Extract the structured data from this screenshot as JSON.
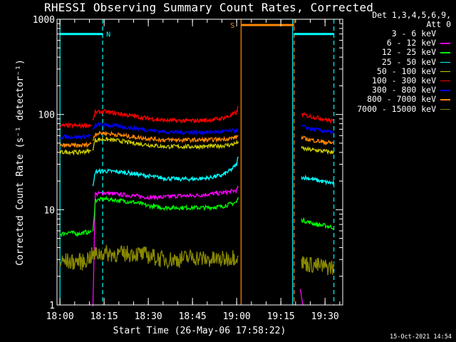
{
  "chart_data": {
    "type": "line",
    "title": "RHESSI Observing Summary Count Rates, Corrected",
    "xlabel": "Start Time (26-May-06 17:58:22)",
    "ylabel": "Corrected Count Rate (s⁻¹ detector⁻¹)",
    "yscale": "log",
    "ylim": [
      1,
      1000
    ],
    "xlim_minutes": [
      -1,
      96
    ],
    "x_ticks": [
      {
        "minutes": 0,
        "label": "18:00"
      },
      {
        "minutes": 15,
        "label": "18:15"
      },
      {
        "minutes": 30,
        "label": "18:30"
      },
      {
        "minutes": 45,
        "label": "18:45"
      },
      {
        "minutes": 60,
        "label": "19:00"
      },
      {
        "minutes": 75,
        "label": "19:15"
      },
      {
        "minutes": 90,
        "label": "19:30"
      }
    ],
    "y_ticks": [
      {
        "value": 1,
        "label": "1"
      },
      {
        "value": 10,
        "label": "10"
      },
      {
        "value": 100,
        "label": "100"
      },
      {
        "value": 1000,
        "label": "1000"
      }
    ],
    "legend_header": [
      "Det 1,3,4,5,6,9,",
      "Att 0"
    ],
    "legend_placement": "right",
    "series": [
      {
        "name": "3 - 6 keV",
        "color": "#000000",
        "segments": [
          {
            "x": [
              8.5,
              12,
              15,
              20,
              25,
              30,
              35,
              40,
              42,
              44,
              45,
              46,
              48,
              50,
              55,
              60.5
            ],
            "y": [
              3.0,
              4.0,
              3.5,
              3.0,
              3.2,
              3.0,
              3.5,
              3.5,
              4.8,
              5.5,
              4.5,
              4.2,
              3.8,
              3.5,
              3.2,
              3.5
            ]
          },
          {
            "x": [
              82,
              85,
              88,
              91,
              93
            ],
            "y": [
              3.0,
              2.8,
              2.7,
              2.6,
              2.5
            ]
          }
        ]
      },
      {
        "name": "6 - 12 keV",
        "color": "#ff00ff",
        "segments": [
          {
            "x": [
              11.2,
              12,
              15,
              20,
              25,
              30,
              35,
              40,
              45,
              50,
              55,
              58,
              60,
              60.5
            ],
            "y": [
              1.0,
              14.5,
              15.0,
              14.5,
              14.0,
              13.5,
              13.5,
              14.0,
              14.0,
              14.5,
              15.0,
              15.5,
              16.0,
              17.0
            ]
          },
          {
            "x": [
              81.5,
              82,
              82.5
            ],
            "y": [
              1.5,
              1.2,
              1.0
            ]
          }
        ]
      },
      {
        "name": "12 - 25 keV",
        "color": "#00ff00",
        "segments": [
          {
            "x": [
              0,
              3,
              6,
              9,
              10.5
            ],
            "y": [
              5.5,
              5.8,
              5.6,
              5.8,
              5.8
            ]
          },
          {
            "x": [
              11.2,
              12,
              15,
              20,
              25,
              30,
              35,
              40,
              45,
              50,
              55,
              58,
              60,
              60.5
            ],
            "y": [
              5.8,
              12.5,
              13.0,
              12.5,
              12.0,
              11.0,
              10.5,
              10.5,
              10.5,
              10.5,
              10.8,
              11.5,
              12.0,
              13.5
            ]
          },
          {
            "x": [
              82,
              84,
              87,
              90,
              93
            ],
            "y": [
              7.8,
              7.5,
              7.0,
              6.8,
              6.5
            ]
          }
        ]
      },
      {
        "name": "25 - 50 keV",
        "color": "#00ffff",
        "segments": [
          {
            "x": [
              11.2,
              12,
              15,
              20,
              25,
              30,
              35,
              40,
              45,
              50,
              55,
              58,
              60,
              60.5
            ],
            "y": [
              17.0,
              25.0,
              25.5,
              25.0,
              24.0,
              22.5,
              21.5,
              21.0,
              21.0,
              21.5,
              23.0,
              26.0,
              30.0,
              36.0
            ]
          },
          {
            "x": [
              82,
              84,
              87,
              90,
              93
            ],
            "y": [
              22.0,
              21.5,
              20.5,
              19.5,
              19.0
            ]
          }
        ]
      },
      {
        "name": "50 - 100 keV",
        "color": "#cccc00",
        "segments": [
          {
            "x": [
              0,
              3,
              6,
              9,
              10.5
            ],
            "y": [
              40.0,
              40.5,
              40.0,
              41.0,
              41.0
            ]
          },
          {
            "x": [
              11.2,
              12,
              15,
              20,
              25,
              30,
              35,
              40,
              45,
              50,
              55,
              58,
              60,
              60.5
            ],
            "y": [
              44.0,
              54.0,
              55.0,
              53.0,
              50.0,
              48.0,
              46.0,
              46.0,
              46.0,
              46.0,
              47.0,
              48.0,
              50.0,
              52.0
            ]
          },
          {
            "x": [
              82,
              84,
              87,
              90,
              93
            ],
            "y": [
              44.0,
              43.0,
              42.0,
              41.0,
              40.0
            ]
          }
        ]
      },
      {
        "name": "100 - 300 keV",
        "color": "#ff0000",
        "segments": [
          {
            "x": [
              0,
              3,
              6,
              9,
              10.5
            ],
            "y": [
              76.0,
              76.5,
              76.0,
              77.0,
              78.0
            ]
          },
          {
            "x": [
              11.2,
              12,
              15,
              20,
              25,
              30,
              35,
              40,
              45,
              50,
              55,
              58,
              60,
              60.5
            ],
            "y": [
              85.0,
              105.0,
              107.0,
              102.0,
              96.0,
              91.0,
              87.0,
              86.0,
              86.0,
              87.0,
              91.0,
              97.0,
              105.0,
              122.0
            ]
          },
          {
            "x": [
              82,
              84,
              87,
              90,
              93
            ],
            "y": [
              100.0,
              97.0,
              93.0,
              89.0,
              84.0
            ]
          }
        ]
      },
      {
        "name": "300 - 800 keV",
        "color": "#0000ff",
        "segments": [
          {
            "x": [
              0,
              3,
              6,
              9,
              10.5
            ],
            "y": [
              58.0,
              58.5,
              58.0,
              59.0,
              60.0
            ]
          },
          {
            "x": [
              11.2,
              12,
              15,
              20,
              25,
              30,
              35,
              40,
              45,
              50,
              55,
              58,
              60,
              60.5
            ],
            "y": [
              66.0,
              77.0,
              78.0,
              75.0,
              72.0,
              69.0,
              66.0,
              65.0,
              65.0,
              65.0,
              66.0,
              67.0,
              68.0,
              70.0
            ]
          },
          {
            "x": [
              82,
              84,
              87,
              90,
              93
            ],
            "y": [
              75.0,
              72.0,
              69.0,
              67.0,
              64.0
            ]
          }
        ]
      },
      {
        "name": "800 - 7000 keV",
        "color": "#ff8800",
        "segments": [
          {
            "x": [
              0,
              3,
              6,
              9,
              10.5
            ],
            "y": [
              47.0,
              47.5,
              47.0,
              48.0,
              49.0
            ]
          },
          {
            "x": [
              11.2,
              12,
              15,
              20,
              25,
              30,
              35,
              40,
              45,
              50,
              55,
              58,
              60,
              60.5
            ],
            "y": [
              54.0,
              63.0,
              64.0,
              61.0,
              58.0,
              56.0,
              54.0,
              54.0,
              54.0,
              54.0,
              55.0,
              56.0,
              58.0,
              60.0
            ]
          },
          {
            "x": [
              82,
              84,
              87,
              90,
              93
            ],
            "y": [
              57.0,
              55.0,
              53.0,
              51.0,
              50.0
            ]
          }
        ]
      },
      {
        "name": "7000 - 15000 keV",
        "color": "#888800",
        "segments": [
          {
            "x": [
              0,
              2,
              4,
              6,
              8,
              9,
              10,
              12,
              15,
              20,
              25,
              30,
              35,
              40,
              45,
              50,
              55,
              60.5
            ],
            "y": [
              2.8,
              2.9,
              2.8,
              2.9,
              2.8,
              3.0,
              3.2,
              3.4,
              3.5,
              3.4,
              3.5,
              3.3,
              3.0,
              3.0,
              3.2,
              3.0,
              3.0,
              3.3
            ]
          },
          {
            "x": [
              82,
              84,
              87,
              90,
              93
            ],
            "y": [
              2.8,
              2.7,
              2.6,
              2.5,
              2.5
            ]
          }
        ]
      }
    ],
    "status_bars": [
      {
        "label": "N",
        "color": "#00ffff",
        "x_start": 0,
        "x_end": 14.5,
        "level": 700
      },
      {
        "label": "S",
        "color": "#ff8800",
        "x_start": 61.5,
        "x_end": 79.5,
        "level": 870
      },
      {
        "label": "",
        "color": "#00ffff",
        "x_start": 79.5,
        "x_end": 93,
        "level": 700
      }
    ],
    "vertical_markers": [
      {
        "x": 0,
        "color": "#00ffff",
        "style": "solid"
      },
      {
        "x": 14.5,
        "color": "#00ffff",
        "style": "dashed"
      },
      {
        "x": 61.5,
        "color": "#ff8800",
        "style": "solid"
      },
      {
        "x": 79,
        "color": "#00ffff",
        "style": "solid"
      },
      {
        "x": 79.5,
        "color": "#ff8800",
        "style": "dashed"
      },
      {
        "x": 93,
        "color": "#00ffff",
        "style": "dashed"
      }
    ]
  },
  "footer_date": "15-Oct-2021 14:54"
}
